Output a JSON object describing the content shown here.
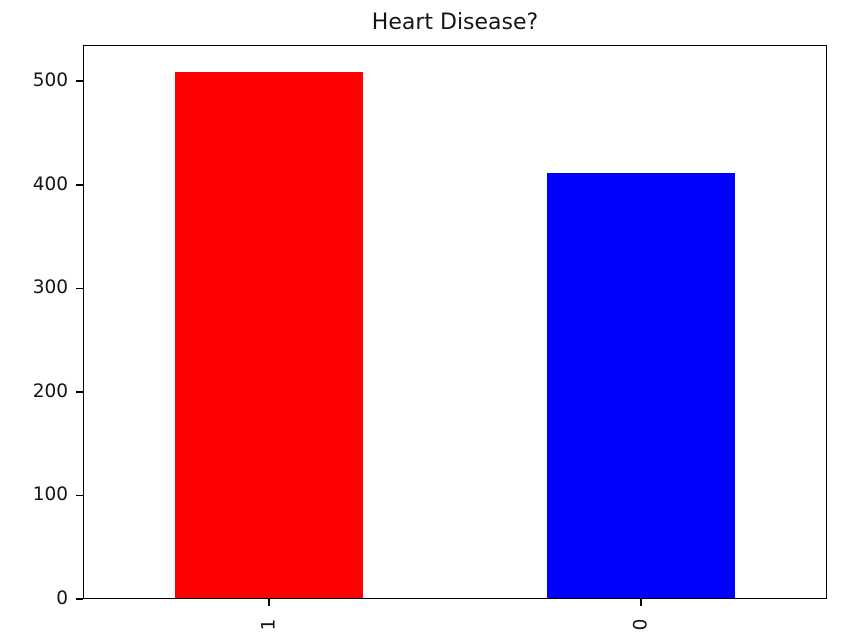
{
  "figure": {
    "background": "#ffffff"
  },
  "chart_data": {
    "type": "bar",
    "title": "Heart Disease?",
    "categories": [
      "1",
      "0"
    ],
    "values": [
      509,
      411
    ],
    "bar_colors": [
      "#ff0000",
      "#0000ff"
    ],
    "xlabel": "",
    "ylabel": "",
    "ylim": [
      0,
      535
    ],
    "yticks": [
      0,
      100,
      200,
      300,
      400,
      500
    ],
    "xtick_rotation": 90,
    "grid": false,
    "legend": false,
    "bar_width_fraction": 0.5,
    "text_color": "#161616",
    "spine_color": "#000000"
  }
}
